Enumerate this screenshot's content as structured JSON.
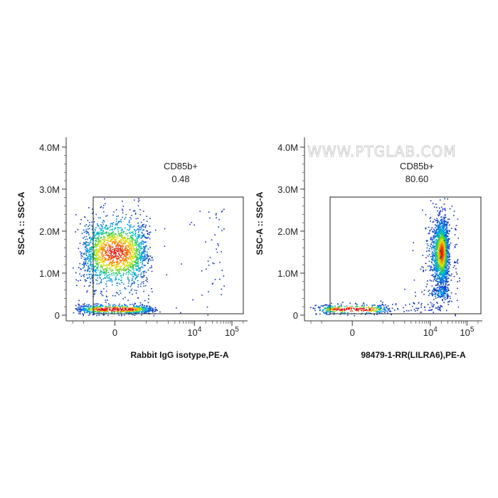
{
  "watermark": "WWW.PTGLAB.COM",
  "chart_data": [
    {
      "type": "scatter",
      "subtype": "flow-cytometry-density-dot-plot",
      "xlabel": "Rabbit IgG isotype,PE-A",
      "ylabel": "SSC-A :: SSC-A",
      "x_scale": "biexponential",
      "x_ticks": [
        "0",
        "10^4",
        "10^5"
      ],
      "y_ticks": [
        "0",
        "1.0M",
        "2.0M",
        "3.0M",
        "4.0M"
      ],
      "ylim": [
        0,
        4200000
      ],
      "gate": {
        "name": "CD85b+",
        "value": "0.48",
        "x_range": [
          1000,
          262144
        ],
        "y_range": [
          0,
          2850000
        ]
      },
      "populations": [
        {
          "name": "main",
          "x_center": 0,
          "y_center": 1500000,
          "x_spread": 250,
          "y_spread": 430000,
          "share": 0.72
        },
        {
          "name": "debris",
          "x_center": 0,
          "y_center": 150000,
          "x_spread": 350,
          "y_spread": 60000,
          "share": 0.26
        },
        {
          "name": "gated-events",
          "scattered": true,
          "share": 0.02
        }
      ]
    },
    {
      "type": "scatter",
      "subtype": "flow-cytometry-density-dot-plot",
      "xlabel": "98479-1-RR(LILRA6),PE-A",
      "ylabel": "SSC-A :: SSC-A",
      "x_scale": "biexponential",
      "x_ticks": [
        "0",
        "10^4",
        "10^5"
      ],
      "y_ticks": [
        "0",
        "1.0M",
        "2.0M",
        "3.0M",
        "4.0M"
      ],
      "ylim": [
        0,
        4200000
      ],
      "gate": {
        "name": "CD85b+",
        "value": "80.60",
        "x_range": [
          1000,
          262144
        ],
        "y_range": [
          0,
          2850000
        ]
      },
      "populations": [
        {
          "name": "positive",
          "x_center": 20000,
          "y_center": 1500000,
          "x_spread": 5000,
          "y_spread": 380000,
          "share": 0.74
        },
        {
          "name": "positive-low-ssc",
          "x_center": 20000,
          "y_center": 550000,
          "x_spread": 6000,
          "y_spread": 90000,
          "share": 0.06
        },
        {
          "name": "debris",
          "x_center": 0,
          "y_center": 150000,
          "x_spread": 350,
          "y_spread": 60000,
          "share": 0.14
        },
        {
          "name": "scattered",
          "scattered": true,
          "share": 0.06
        }
      ]
    }
  ]
}
